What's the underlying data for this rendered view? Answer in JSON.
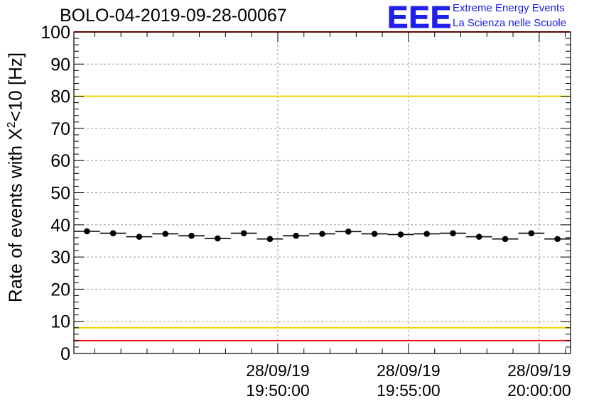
{
  "title": "BOLO-04-2019-09-28-00067",
  "logo": {
    "mark": "EEE",
    "line1": "Extreme Energy Events",
    "line2": "La Scienza nelle Scuole"
  },
  "colors": {
    "red_line": "#ee1111",
    "yellow_line": "#f0d000",
    "marker": "#000000",
    "grid": "#9a9a9a",
    "logo": "#2020ee"
  },
  "chart_data": {
    "type": "scatter",
    "title": "BOLO-04-2019-09-28-00067",
    "ylabel_prefix": "Rate of events with ",
    "ylabel_symbol": "X",
    "ylabel_sup": "2",
    "ylabel_suffix": "<10 [Hz]",
    "ylim": [
      0,
      100
    ],
    "yticks": [
      "0",
      "10",
      "20",
      "30",
      "40",
      "50",
      "60",
      "70",
      "80",
      "90",
      "100"
    ],
    "xlim_minutes": [
      -7.8,
      11.2
    ],
    "xticks": [
      {
        "minute": 0,
        "date": "28/09/19",
        "time": "19:50:00"
      },
      {
        "minute": 5,
        "date": "28/09/19",
        "time": "19:55:00"
      },
      {
        "minute": 10,
        "date": "28/09/19",
        "time": "20:00:00"
      }
    ],
    "bin_width_minutes": 1,
    "x_minutes": [
      -7.3,
      -6.3,
      -5.3,
      -4.3,
      -3.3,
      -2.3,
      -1.3,
      -0.3,
      0.7,
      1.7,
      2.7,
      3.7,
      4.7,
      5.7,
      6.7,
      7.7,
      8.7,
      9.7,
      10.7
    ],
    "values": [
      38.0,
      37.4,
      36.3,
      37.2,
      36.6,
      35.8,
      37.4,
      35.6,
      36.6,
      37.2,
      37.9,
      37.2,
      37.0,
      37.2,
      37.4,
      36.3,
      35.6,
      37.4,
      35.6
    ],
    "reference_lines": [
      {
        "name": "upper-red",
        "value": 100,
        "color": "#ee1111"
      },
      {
        "name": "upper-yellow",
        "value": 80,
        "color": "#f0d000"
      },
      {
        "name": "lower-yellow",
        "value": 8,
        "color": "#f0d000"
      },
      {
        "name": "lower-red",
        "value": 4,
        "color": "#ee1111"
      }
    ],
    "grid": true
  }
}
